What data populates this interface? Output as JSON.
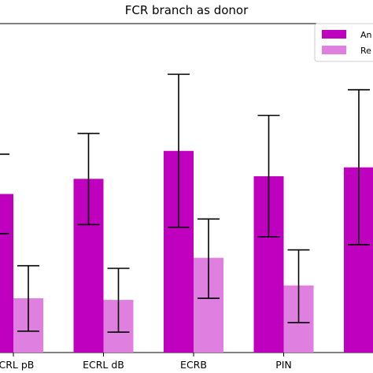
{
  "chart_data": {
    "type": "bar",
    "title": "FCR branch as donor",
    "xlabel": "",
    "ylabel": "",
    "categories": [
      "ECRL pB",
      "ECRL dB",
      "ECRB",
      "PIN",
      ""
    ],
    "ylim": [
      0,
      100
    ],
    "grid": false,
    "legend_position": "top-right",
    "series": [
      {
        "name": "An",
        "color": "#BF00BF",
        "values": [
          48.2,
          52.8,
          61.3,
          53.6,
          56.3
        ],
        "error_low": [
          36.1,
          38.9,
          38.1,
          35.2,
          32.8
        ],
        "error_high": [
          60.3,
          66.6,
          84.6,
          72.1,
          79.9
        ]
      },
      {
        "name": "Re",
        "color": "#DF7FDF",
        "values": [
          16.5,
          16.0,
          28.8,
          20.4,
          null
        ],
        "error_low": [
          6.5,
          6.2,
          16.5,
          9.1,
          null
        ],
        "error_high": [
          26.4,
          25.6,
          40.6,
          31.2,
          null
        ]
      }
    ]
  }
}
